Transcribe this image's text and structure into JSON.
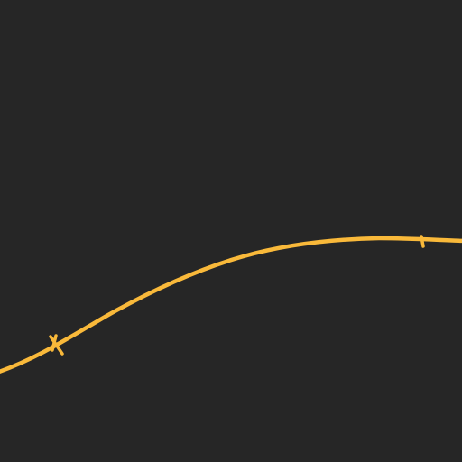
{
  "editor": {
    "background_color": "#262626",
    "curve_color": "#f9b93a"
  }
}
